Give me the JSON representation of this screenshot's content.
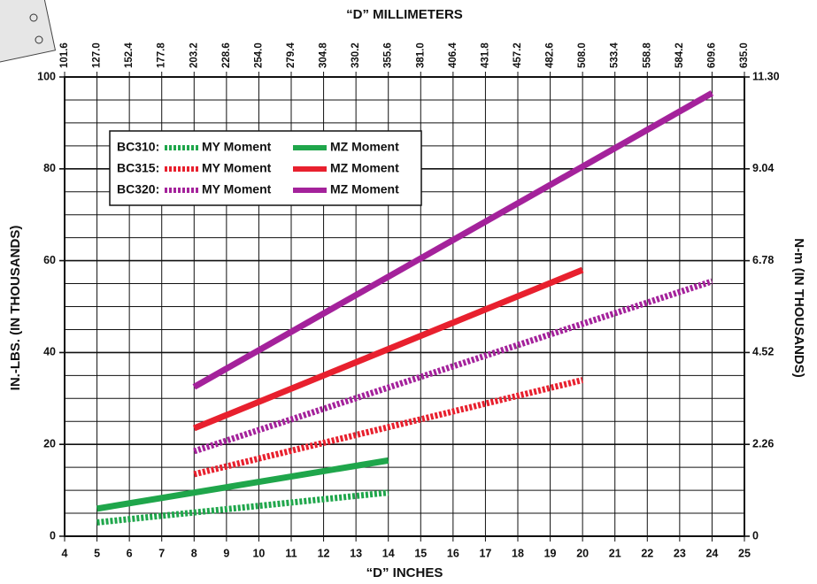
{
  "chart_data": {
    "type": "line",
    "xlabel": "“D” INCHES",
    "x2label": "“D” MILLIMETERS",
    "ylabel": "IN.-LBS. (IN THOUSANDS)",
    "y2label": "N-m (IN THOUSANDS)",
    "xlim": [
      4,
      25
    ],
    "xticks": [
      4,
      5,
      6,
      7,
      8,
      9,
      10,
      11,
      12,
      13,
      14,
      15,
      16,
      17,
      18,
      19,
      20,
      21,
      22,
      23,
      24,
      25
    ],
    "x2lim": [
      101.6,
      635.0
    ],
    "x2ticks": [
      101.6,
      {
        "value": 127,
        "label": "127.0"
      },
      152.4,
      177.8,
      203.2,
      228.6,
      {
        "value": 254,
        "label": "254.0"
      },
      279.4,
      304.8,
      330.2,
      355.6,
      {
        "value": 381,
        "label": "381.0"
      },
      406.4,
      431.8,
      457.2,
      482.6,
      {
        "value": 508,
        "label": "508.0"
      },
      533.4,
      558.8,
      584.2,
      609.6,
      {
        "value": 635,
        "label": "635.0"
      }
    ],
    "ylim": [
      0,
      100
    ],
    "yticks": [
      0,
      20,
      40,
      60,
      80,
      100
    ],
    "yminor": [
      5,
      10,
      15,
      25,
      30,
      35,
      45,
      50,
      55,
      65,
      70,
      75,
      85,
      90,
      95
    ],
    "y2lim": [
      0,
      11.3
    ],
    "y2ticks": [
      0,
      2.26,
      4.52,
      6.78,
      9.04,
      {
        "value": 11.3,
        "label": "11.30"
      }
    ],
    "grid": true,
    "series_groups": [
      {
        "label": "BC310:",
        "series": [
          {
            "name": "MY Moment",
            "color": "#1fa64b",
            "style": "dotted",
            "x": [
              5,
              14
            ],
            "values": [
              3,
              9.5
            ]
          },
          {
            "name": "MZ Moment",
            "color": "#1fa64b",
            "style": "solid",
            "x": [
              5,
              14
            ],
            "values": [
              6,
              16.5
            ]
          }
        ]
      },
      {
        "label": "BC315:",
        "series": [
          {
            "name": "MY Moment",
            "color": "#e8202e",
            "style": "dotted",
            "x": [
              8,
              20
            ],
            "values": [
              13.5,
              34
            ]
          },
          {
            "name": "MZ Moment",
            "color": "#e8202e",
            "style": "solid",
            "x": [
              8,
              20
            ],
            "values": [
              23.5,
              58
            ]
          }
        ]
      },
      {
        "label": "BC320:",
        "series": [
          {
            "name": "MY Moment",
            "color": "#a4229b",
            "style": "dotted",
            "x": [
              8,
              24
            ],
            "values": [
              18.5,
              55.5
            ]
          },
          {
            "name": "MZ Moment",
            "color": "#a4229b",
            "style": "solid",
            "x": [
              8,
              24
            ],
            "values": [
              32.5,
              96.5
            ]
          }
        ]
      }
    ]
  }
}
